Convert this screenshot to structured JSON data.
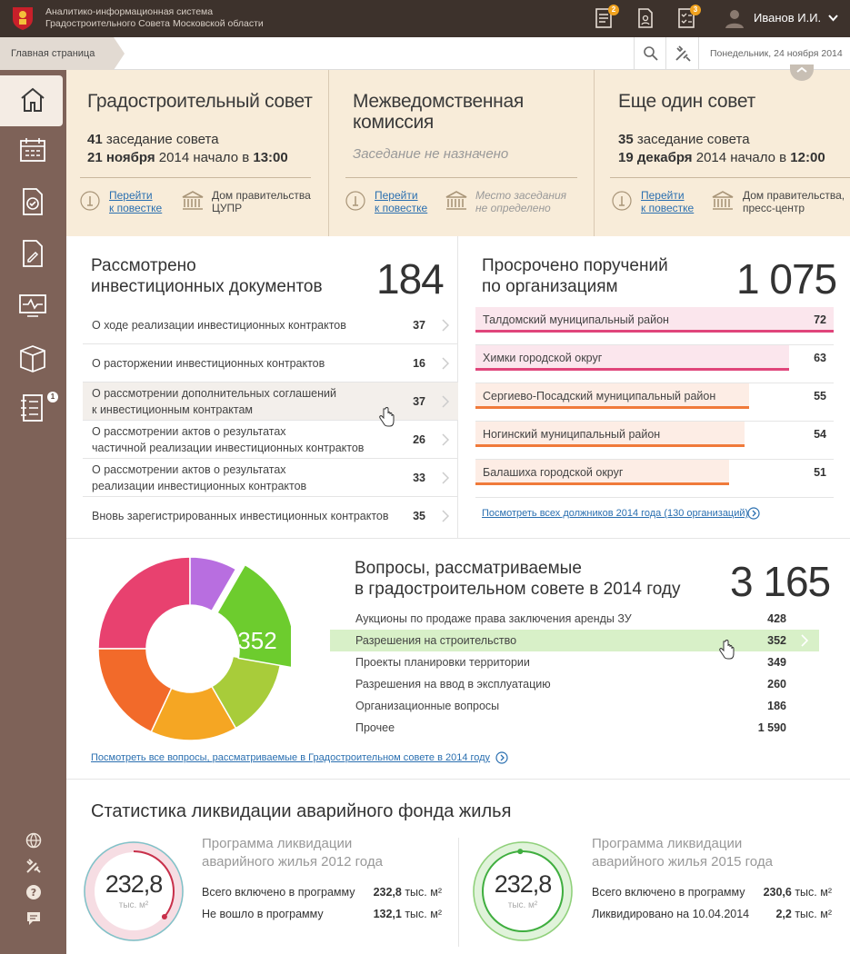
{
  "header": {
    "system_line1": "Аналитико-информационная система",
    "system_line2": "Градостроительного Совета Московской области",
    "badges": [
      "2",
      "3"
    ],
    "user_name": "Иванов И.И."
  },
  "breadcrumb": {
    "home": "Главная страница"
  },
  "date": "Понедельник, 24 ноября 2014",
  "sidebar": {
    "badge": "1"
  },
  "councils": [
    {
      "title": "Градостроительный совет",
      "line1_num": "41",
      "line1_text": " заседание совета",
      "line2_date": "21 ноября",
      "line2_mid": " 2014 начало в ",
      "line2_time": "13:00",
      "link1": "Перейти",
      "link2": "к повестке",
      "place1": "Дом правительства",
      "place2": "ЦУПР"
    },
    {
      "title1": "Межведомственная",
      "title2": "комиссия",
      "status": "Заседание не назначено",
      "link1": "Перейти",
      "link2": "к повестке",
      "place1": "Место заседания",
      "place2": "не определено"
    },
    {
      "title": "Еще один совет",
      "line1_num": "35",
      "line1_text": " заседание совета",
      "line2_date": "19 декабря",
      "line2_mid": " 2014 начало в ",
      "line2_time": "12:00",
      "link1": "Перейти",
      "link2": "к повестке",
      "place1": "Дом правительства,",
      "place2": "пресс-центр"
    }
  ],
  "investments": {
    "title1": "Рассмотрено",
    "title2": "инвестиционных документов",
    "total": "184",
    "rows": [
      {
        "l1": "О ходе реализации инвестиционных контрактов",
        "l2": "",
        "value": "37"
      },
      {
        "l1": "О расторжении инвестиционных контрактов",
        "l2": "",
        "value": "16"
      },
      {
        "l1": "О рассмотрении дополнительных соглашений",
        "l2": "к инвестиционным контрактам",
        "value": "37"
      },
      {
        "l1": "О рассмотрении актов о результатах",
        "l2": "частичной реализации инвестиционных контрактов",
        "value": "26"
      },
      {
        "l1": "О рассмотрении актов о результатах",
        "l2": "реализации инвестиционных контрактов",
        "value": "33"
      },
      {
        "l1": "Вновь зарегистрированных инвестиционных контрактов",
        "l2": "",
        "value": "35"
      }
    ]
  },
  "overdue": {
    "title1": "Просрочено поручений",
    "title2": "по организациям",
    "total": "1 075",
    "rows": [
      {
        "label": "Талдомский муниципальный район",
        "value": "72",
        "color": "#e0457b"
      },
      {
        "label": "Химки городской округ",
        "value": "63",
        "color": "#e0457b"
      },
      {
        "label": "Сергиево-Посадский муниципальный район",
        "value": "55",
        "color": "#f07a3a"
      },
      {
        "label": "Ногинский муниципальный район",
        "value": "54",
        "color": "#f07a3a"
      },
      {
        "label": "Балашиха городской округ",
        "value": "51",
        "color": "#f07a3a"
      }
    ],
    "link": "Посмотреть всех должников 2014 года (130 организаций)"
  },
  "questions": {
    "title1": "Вопросы, рассматриваемые",
    "title2": "в градостроительном совете в 2014 году",
    "total": "3 165",
    "highlight_value": "352",
    "rows": [
      {
        "label": "Аукционы по продаже права заключения аренды ЗУ",
        "value": "428"
      },
      {
        "label": "Разрешения на строительство",
        "value": "352"
      },
      {
        "label": "Проекты планировки территории",
        "value": "349"
      },
      {
        "label": "Разрешения на ввод в эксплуатацию",
        "value": "260"
      },
      {
        "label": "Организационные вопросы",
        "value": "186"
      },
      {
        "label": "Прочее",
        "value": "1 590"
      }
    ],
    "link": "Посмотреть все вопросы, рассматриваемые в Градостроительном совете в 2014 году",
    "colors": [
      "#e8416f",
      "#f26a2a",
      "#f5a623",
      "#a8cc3a",
      "#6dcc2e",
      "#b86ee0"
    ]
  },
  "stats": {
    "title": "Статистика ликвидации аварийного фонда жилья",
    "programs": [
      {
        "t1": "Программа ликвидации",
        "t2": "аварийного жилья 2012 года",
        "ring_value": "232,8",
        "ring_unit": "тыс. м²",
        "r1_label": "Всего включено в программу",
        "r1_num": "232,8",
        "r1_unit": " тыс. м²",
        "r2_label": "Не вошло в программу",
        "r2_num": "132,1",
        "r2_unit": " тыс. м²",
        "accent": "#c8304a",
        "fill": 0.36
      },
      {
        "t1": "Программа ликвидации",
        "t2": "аварийного жилья 2015 года",
        "ring_value": "232,8",
        "ring_unit": "тыс. м²",
        "r1_label": "Всего включено в программу",
        "r1_num": "230,6",
        "r1_unit": " тыс. м²",
        "r2_label": "Ликвидировано на 10.04.2014",
        "r2_num": "2,2",
        "r2_unit": " тыс. м²",
        "accent": "#3fae3f",
        "fill": 0.99
      }
    ]
  }
}
